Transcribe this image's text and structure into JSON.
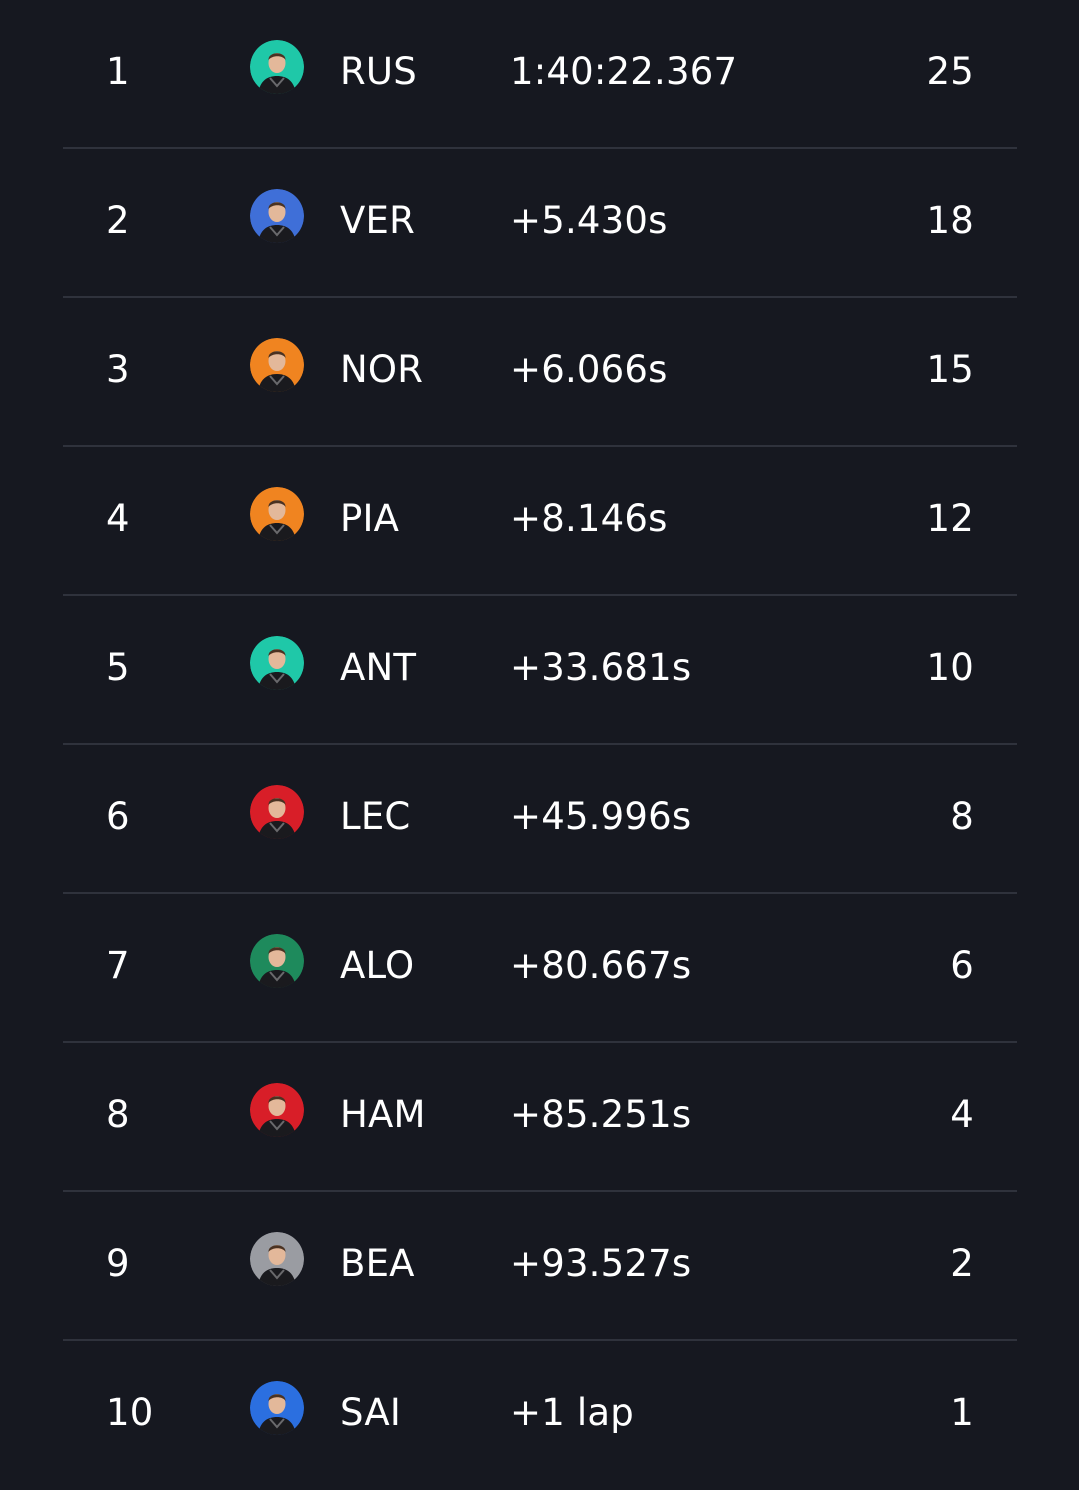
{
  "results": [
    {
      "position": "1",
      "driver": "RUS",
      "time": "1:40:22.367",
      "points": "25",
      "avatar_icon": "driver-avatar-icon",
      "team_color": "#1fc8a8"
    },
    {
      "position": "2",
      "driver": "VER",
      "time": "+5.430s",
      "points": "18",
      "avatar_icon": "driver-avatar-icon",
      "team_color": "#3f6fd8"
    },
    {
      "position": "3",
      "driver": "NOR",
      "time": "+6.066s",
      "points": "15",
      "avatar_icon": "driver-avatar-icon",
      "team_color": "#f08420"
    },
    {
      "position": "4",
      "driver": "PIA",
      "time": "+8.146s",
      "points": "12",
      "avatar_icon": "driver-avatar-icon",
      "team_color": "#f08420"
    },
    {
      "position": "5",
      "driver": "ANT",
      "time": "+33.681s",
      "points": "10",
      "avatar_icon": "driver-avatar-icon",
      "team_color": "#1fc8a8"
    },
    {
      "position": "6",
      "driver": "LEC",
      "time": "+45.996s",
      "points": "8",
      "avatar_icon": "driver-avatar-icon",
      "team_color": "#d81e28"
    },
    {
      "position": "7",
      "driver": "ALO",
      "time": "+80.667s",
      "points": "6",
      "avatar_icon": "driver-avatar-icon",
      "team_color": "#1e8a5c"
    },
    {
      "position": "8",
      "driver": "HAM",
      "time": "+85.251s",
      "points": "4",
      "avatar_icon": "driver-avatar-icon",
      "team_color": "#d81e28"
    },
    {
      "position": "9",
      "driver": "BEA",
      "time": "+93.527s",
      "points": "2",
      "avatar_icon": "driver-avatar-icon",
      "team_color": "#9a9ca2"
    },
    {
      "position": "10",
      "driver": "SAI",
      "time": "+1 lap",
      "points": "1",
      "avatar_icon": "driver-avatar-icon",
      "team_color": "#2b6fe0"
    }
  ]
}
